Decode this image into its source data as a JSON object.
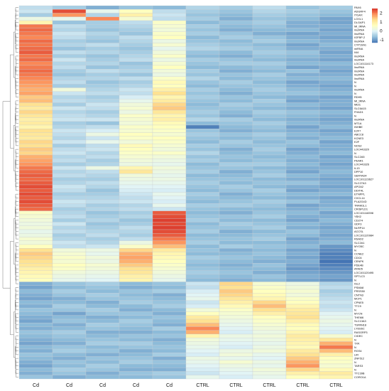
{
  "chart_data": {
    "type": "heatmap",
    "title": "",
    "xlabel": "",
    "ylabel": "",
    "columns": [
      "Cd",
      "Cd",
      "Cd",
      "Cd",
      "Cd",
      "CTRL",
      "CTRL",
      "CTRL",
      "CTRL",
      "CTRL"
    ],
    "rows": [
      "PAX6",
      "ADGRF4",
      "ITGAX",
      "LOXL1",
      "DLGAP1",
      "MI_tRNA",
      "lincRNA",
      "lincRNA",
      "IGFBP-2",
      "lincRNA",
      "CYP19A1",
      "miRNA",
      "Il44",
      "lincRNA",
      "lincRNA",
      "LOC101114173",
      "lincRNA",
      "lincRNA",
      "lincRNA",
      "lincRNA",
      "N",
      "N",
      "lincRNA",
      "N",
      "RDH5",
      "MI_tRNA",
      "MEI1",
      "SLC6A15",
      "FHAD1",
      "N",
      "lincRNA",
      "MT1A",
      "INHBE",
      "E2F7",
      "ABCC8",
      "KCNE3",
      "E2F",
      "NOS2",
      "LOC443320",
      "N",
      "SLC2A5",
      "PEAR1",
      "LOC443326",
      "IL13",
      "DPP10",
      "SERTAD4",
      "LOC101123627",
      "SLC27A3",
      "APOA2",
      "DDIT4L",
      "ETNPPL",
      "CXCL14",
      "PLA2G4D",
      "TRAM1L1",
      "CRISPLD1",
      "LOC101118398",
      "YBX2",
      "CD274",
      "GDF3",
      "NLRP14",
      "ACCSL",
      "LOC101120984",
      "RSAD2",
      "SLC2A1",
      "MYO5C",
      "N",
      "CCNE2",
      "CDC6",
      "CENPK",
      "PDE4B",
      "ATAD5",
      "LOC101120495",
      "SPTLC3",
      "N",
      "ISL2",
      "PSMA8",
      "PRSS50",
      "CNTN3",
      "MCP1",
      "CPNE5",
      "TTC9",
      "N",
      "MYCN",
      "THEM6",
      "SLC13A3",
      "TSPAN18",
      "LY6G6C",
      "RASGRP3",
      "CIDEC",
      "N",
      "TXK",
      "N",
      "RGS4",
      "LIR",
      "ZNF512",
      "N",
      "TARS3",
      "N",
      "TTC39B",
      "CORO1A"
    ],
    "values": [
      [
        -0.3,
        -0.5,
        -0.8,
        -0.6,
        -0.7,
        -0.4,
        -0.5,
        -0.3,
        -0.6,
        -0.5
      ],
      [
        -0.2,
        2.3,
        0.1,
        0.6,
        -0.3,
        -0.5,
        -0.6,
        -0.4,
        -0.5,
        -0.6
      ],
      [
        -0.5,
        1.8,
        -0.4,
        0.9,
        -0.2,
        -0.6,
        -0.7,
        -0.5,
        -0.6,
        -0.7
      ],
      [
        0.2,
        0.1,
        1.9,
        0.4,
        -0.3,
        -0.5,
        -0.8,
        -0.6,
        -0.7,
        -0.9
      ],
      [
        0.8,
        -0.6,
        -0.5,
        -0.3,
        0.5,
        -0.7,
        -0.6,
        -0.5,
        -0.8,
        -0.9
      ],
      [
        2.0,
        -0.3,
        -0.5,
        -0.4,
        0.4,
        -0.5,
        -0.7,
        -0.6,
        -0.8,
        -0.8
      ],
      [
        2.1,
        -0.4,
        -0.6,
        -0.5,
        0.3,
        -0.6,
        -0.8,
        -0.7,
        -0.7,
        -0.9
      ],
      [
        2.0,
        -0.2,
        -0.4,
        -0.6,
        0.5,
        -0.5,
        -0.6,
        -0.8,
        -0.9,
        -0.8
      ],
      [
        1.9,
        -0.3,
        -0.5,
        -0.3,
        0.6,
        -0.7,
        -0.5,
        -0.6,
        -0.8,
        -0.9
      ],
      [
        2.1,
        -0.5,
        -0.6,
        -0.4,
        0.2,
        -0.6,
        -0.7,
        -0.5,
        -0.7,
        -0.8
      ],
      [
        2.0,
        -0.4,
        -0.3,
        -0.5,
        0.4,
        -0.5,
        -0.6,
        -0.7,
        -0.9,
        -0.7
      ],
      [
        2.1,
        -0.6,
        -0.5,
        -0.6,
        0.1,
        -0.4,
        -0.5,
        -0.6,
        -0.8,
        -0.8
      ],
      [
        2.2,
        -0.3,
        -0.4,
        -0.5,
        0.3,
        -0.6,
        -0.7,
        -0.5,
        -0.6,
        -0.9
      ],
      [
        2.0,
        -0.5,
        -0.6,
        -0.4,
        0.5,
        -0.7,
        -0.8,
        -0.6,
        -0.7,
        -0.8
      ],
      [
        2.1,
        -0.2,
        -0.5,
        -0.3,
        0.2,
        -0.5,
        -0.6,
        -0.7,
        -0.8,
        -0.9
      ],
      [
        1.9,
        -0.4,
        -0.4,
        -0.6,
        0.4,
        -0.6,
        -0.5,
        -0.5,
        -0.7,
        -0.7
      ],
      [
        2.0,
        -0.3,
        -0.6,
        -0.5,
        0.6,
        -0.7,
        -0.7,
        -0.6,
        -0.9,
        -0.8
      ],
      [
        2.1,
        -0.5,
        -0.3,
        -0.4,
        0.3,
        -0.5,
        -0.8,
        -0.7,
        -0.6,
        -0.9
      ],
      [
        2.0,
        -0.6,
        -0.5,
        -0.6,
        0.2,
        -0.6,
        -0.6,
        -0.5,
        -0.8,
        -0.8
      ],
      [
        1.9,
        -0.4,
        -0.4,
        -0.3,
        0.5,
        -0.4,
        -0.7,
        -0.6,
        -0.7,
        -0.7
      ],
      [
        1.8,
        -0.3,
        -0.6,
        -0.5,
        0.7,
        -0.6,
        -0.5,
        -0.7,
        -0.9,
        -0.8
      ],
      [
        1.7,
        -0.5,
        -0.5,
        -0.4,
        0.6,
        -0.7,
        -0.6,
        -0.6,
        -0.8,
        -0.9
      ],
      [
        1.6,
        0.3,
        -0.4,
        -0.2,
        0.9,
        -0.5,
        -0.7,
        -0.5,
        -0.7,
        -0.8
      ],
      [
        1.7,
        -0.2,
        -0.3,
        -0.3,
        1.2,
        -0.6,
        -0.8,
        -0.6,
        -0.6,
        -0.7
      ],
      [
        1.4,
        -0.4,
        -0.5,
        -0.1,
        0.8,
        -0.5,
        -0.6,
        -0.7,
        -0.8,
        -0.9
      ],
      [
        1.5,
        -0.3,
        -0.4,
        0.1,
        1.0,
        -0.6,
        -0.7,
        -0.5,
        -0.9,
        -0.8
      ],
      [
        1.2,
        -0.5,
        -0.2,
        0.3,
        1.3,
        -0.7,
        -0.5,
        -0.6,
        -0.7,
        -0.8
      ],
      [
        1.0,
        -0.2,
        -0.3,
        0.4,
        1.4,
        -0.6,
        -0.6,
        -0.7,
        -0.8,
        -0.9
      ],
      [
        1.3,
        -0.4,
        -0.5,
        0.2,
        1.1,
        -0.5,
        -0.7,
        -0.5,
        -0.6,
        -0.7
      ],
      [
        1.1,
        -0.3,
        -0.4,
        0.5,
        0.8,
        -0.6,
        -0.8,
        -0.6,
        -0.7,
        -0.8
      ],
      [
        0.9,
        -0.2,
        -0.2,
        0.4,
        0.9,
        -0.4,
        -0.5,
        -0.7,
        -0.8,
        -0.9
      ],
      [
        1.0,
        -0.5,
        -0.6,
        0.3,
        0.7,
        -0.7,
        -0.6,
        -0.5,
        -0.7,
        -0.8
      ],
      [
        0.8,
        -0.4,
        -0.3,
        0.5,
        0.6,
        -1.2,
        -0.7,
        -0.6,
        -0.9,
        -0.7
      ],
      [
        1.2,
        -0.2,
        -0.1,
        0.4,
        0.5,
        -0.6,
        -0.8,
        -0.7,
        -0.8,
        -0.9
      ],
      [
        1.1,
        -0.3,
        0.2,
        0.6,
        0.4,
        -0.5,
        -0.6,
        -0.5,
        -0.7,
        -0.8
      ],
      [
        1.0,
        -0.4,
        -0.2,
        0.5,
        0.6,
        -0.6,
        -0.7,
        -0.6,
        -0.8,
        -0.7
      ],
      [
        1.3,
        -0.2,
        0.1,
        0.3,
        0.5,
        -0.7,
        -0.5,
        -0.7,
        -0.6,
        -0.9
      ],
      [
        1.2,
        -0.5,
        -0.3,
        0.7,
        0.4,
        -0.5,
        -0.6,
        -0.6,
        -0.7,
        -0.8
      ],
      [
        1.4,
        -0.3,
        -0.2,
        0.6,
        0.3,
        -0.6,
        -0.8,
        -0.5,
        -0.9,
        -0.8
      ],
      [
        1.3,
        -0.2,
        -0.4,
        0.5,
        0.5,
        -0.4,
        -0.7,
        -0.6,
        -0.8,
        -0.7
      ],
      [
        1.6,
        -0.4,
        -0.3,
        0.4,
        0.3,
        -0.6,
        -0.6,
        -0.7,
        -0.7,
        -0.9
      ],
      [
        1.7,
        -0.3,
        -0.5,
        0.3,
        0.2,
        -0.5,
        -0.7,
        -0.6,
        -0.8,
        -0.8
      ],
      [
        1.8,
        -0.5,
        -0.4,
        0.2,
        0.1,
        -0.7,
        -0.5,
        -0.5,
        -0.7,
        -0.9
      ],
      [
        2.0,
        -0.2,
        0.2,
        0.8,
        0.3,
        -0.6,
        -0.6,
        -0.7,
        -0.8,
        -0.8
      ],
      [
        2.1,
        -0.4,
        -0.3,
        1.1,
        0.2,
        -0.5,
        -0.8,
        -0.6,
        -0.9,
        -0.7
      ],
      [
        2.2,
        -0.3,
        -0.4,
        0.3,
        0.1,
        -0.7,
        -0.7,
        -0.5,
        -0.7,
        -0.8
      ],
      [
        2.1,
        -0.5,
        -0.5,
        0.2,
        0.2,
        -0.6,
        -0.6,
        -0.7,
        -0.8,
        -0.9
      ],
      [
        2.2,
        -0.4,
        -0.3,
        0.1,
        0.1,
        -0.5,
        -0.7,
        -0.6,
        -0.6,
        -0.8
      ],
      [
        2.3,
        -0.2,
        -0.4,
        0.0,
        0.0,
        -0.6,
        -0.5,
        -0.7,
        -0.8,
        -0.9
      ],
      [
        2.2,
        -0.3,
        -0.6,
        -0.1,
        -0.1,
        -0.7,
        -0.6,
        -0.5,
        -0.9,
        -0.8
      ],
      [
        2.3,
        -0.5,
        -0.5,
        -0.2,
        0.1,
        -0.5,
        -0.8,
        -0.6,
        -0.7,
        -0.7
      ],
      [
        2.2,
        -0.4,
        -0.4,
        -0.3,
        0.0,
        -0.6,
        -0.7,
        -0.7,
        -0.8,
        -0.9
      ],
      [
        2.3,
        -0.2,
        -0.3,
        -0.2,
        -0.1,
        -0.7,
        -0.6,
        -0.5,
        -0.6,
        -0.8
      ],
      [
        2.2,
        -0.3,
        -0.5,
        -0.4,
        0.1,
        -0.5,
        -0.5,
        -0.6,
        -0.9,
        -0.8
      ],
      [
        2.1,
        -0.5,
        -0.4,
        -0.3,
        -0.2,
        -0.6,
        -0.7,
        -0.7,
        -0.8,
        -0.7
      ],
      [
        0.5,
        -0.4,
        -0.6,
        -0.5,
        2.2,
        -0.7,
        -0.8,
        -0.6,
        -0.7,
        -0.9
      ],
      [
        0.4,
        -0.3,
        -0.5,
        -0.4,
        2.3,
        -0.6,
        -0.6,
        -0.5,
        -0.8,
        -0.8
      ],
      [
        0.3,
        -0.5,
        -0.4,
        -0.6,
        2.4,
        -0.5,
        -0.7,
        -0.7,
        -0.9,
        -0.7
      ],
      [
        0.2,
        -0.2,
        -0.6,
        -0.5,
        2.3,
        -0.7,
        -0.5,
        -0.6,
        -0.7,
        -0.8
      ],
      [
        0.3,
        -0.4,
        -0.5,
        -0.3,
        2.4,
        -0.6,
        -0.6,
        -0.5,
        -0.8,
        -0.9
      ],
      [
        0.1,
        -0.3,
        -0.4,
        -0.4,
        2.3,
        -0.5,
        -0.8,
        -0.7,
        -0.6,
        -0.8
      ],
      [
        0.2,
        -0.5,
        -0.3,
        -0.5,
        2.2,
        -0.7,
        -0.7,
        -0.6,
        -0.7,
        -0.9
      ],
      [
        0.4,
        -0.4,
        -0.5,
        -0.3,
        2.0,
        -0.6,
        -0.6,
        -0.5,
        -0.9,
        -0.8
      ],
      [
        0.3,
        -0.2,
        -0.4,
        0.2,
        1.8,
        -0.5,
        -0.7,
        -0.7,
        -0.8,
        -0.7
      ],
      [
        0.6,
        -0.3,
        -0.2,
        0.5,
        1.5,
        -0.7,
        -0.5,
        -0.6,
        -0.7,
        -1.0
      ],
      [
        1.2,
        0.3,
        0.2,
        1.3,
        1.0,
        -0.6,
        -0.8,
        -0.7,
        -0.9,
        -1.1
      ],
      [
        1.4,
        0.4,
        0.1,
        1.6,
        0.8,
        -0.7,
        -0.7,
        -0.6,
        -0.8,
        -1.2
      ],
      [
        1.3,
        0.5,
        0.3,
        1.7,
        0.7,
        -0.5,
        -0.6,
        -0.7,
        -0.9,
        -1.2
      ],
      [
        1.2,
        0.4,
        0.2,
        1.6,
        0.6,
        -0.6,
        -0.7,
        -0.8,
        -0.8,
        -1.3
      ],
      [
        1.1,
        0.6,
        0.4,
        1.4,
        0.5,
        -0.7,
        -0.8,
        -0.6,
        -0.9,
        -1.2
      ],
      [
        0.9,
        0.5,
        0.3,
        1.2,
        0.4,
        -0.6,
        -0.7,
        -0.7,
        -1.0,
        -1.1
      ],
      [
        0.8,
        0.3,
        0.2,
        1.1,
        0.3,
        -0.5,
        -0.6,
        -0.8,
        -0.9,
        -1.0
      ],
      [
        0.7,
        0.2,
        0.1,
        0.9,
        0.2,
        -0.6,
        -0.7,
        -0.6,
        -0.8,
        -0.9
      ],
      [
        0.6,
        0.1,
        0.0,
        0.8,
        0.1,
        -0.7,
        -0.8,
        -0.7,
        -0.9,
        -1.0
      ],
      [
        -0.8,
        -0.6,
        -0.5,
        -0.7,
        -0.6,
        -0.2,
        1.3,
        0.4,
        0.2,
        -0.4
      ],
      [
        -0.9,
        -0.7,
        -0.6,
        -0.8,
        -0.7,
        -0.3,
        1.2,
        0.5,
        0.3,
        -0.3
      ],
      [
        -0.7,
        -0.5,
        -0.7,
        -0.6,
        -0.5,
        -0.1,
        1.4,
        0.6,
        0.4,
        -0.5
      ],
      [
        -0.8,
        -0.6,
        -0.5,
        -0.7,
        -0.8,
        0.0,
        1.3,
        0.7,
        0.3,
        -0.4
      ],
      [
        -0.9,
        -0.8,
        -0.6,
        -0.6,
        -0.7,
        0.1,
        1.1,
        0.8,
        0.5,
        -0.3
      ],
      [
        -0.7,
        -0.7,
        -0.8,
        -0.5,
        -0.6,
        -0.2,
        0.9,
        1.3,
        0.6,
        -0.2
      ],
      [
        -0.8,
        -0.5,
        -0.7,
        -0.7,
        -0.5,
        -0.1,
        0.7,
        1.5,
        0.8,
        -0.3
      ],
      [
        -0.6,
        -0.6,
        -0.5,
        -0.8,
        -0.7,
        0.3,
        0.5,
        1.2,
        1.0,
        -0.2
      ],
      [
        -0.7,
        -0.9,
        -0.6,
        -0.6,
        -0.8,
        0.6,
        0.4,
        0.9,
        1.1,
        0.0
      ],
      [
        -0.8,
        -0.7,
        -0.8,
        -0.7,
        -0.6,
        1.0,
        0.3,
        0.6,
        1.2,
        0.1
      ],
      [
        -0.9,
        -0.6,
        -0.7,
        -0.5,
        -0.7,
        1.2,
        0.2,
        0.5,
        0.9,
        0.2
      ],
      [
        -0.7,
        -0.8,
        -0.5,
        -0.6,
        -0.8,
        1.5,
        0.1,
        0.4,
        0.7,
        0.1
      ],
      [
        -0.8,
        -0.7,
        -0.6,
        -0.7,
        -0.5,
        1.9,
        0.0,
        0.3,
        0.6,
        0.0
      ],
      [
        -0.6,
        -0.5,
        -0.8,
        -0.8,
        -0.7,
        1.6,
        -0.1,
        0.2,
        0.8,
        -0.1
      ],
      [
        -0.7,
        -0.6,
        -0.7,
        -0.6,
        -0.6,
        0.8,
        0.2,
        0.3,
        1.0,
        0.4
      ],
      [
        -0.8,
        -0.7,
        -0.6,
        -0.7,
        -0.8,
        0.3,
        0.1,
        0.2,
        0.9,
        1.1
      ],
      [
        -0.9,
        -0.8,
        -0.5,
        -0.5,
        -0.7,
        0.2,
        0.0,
        0.1,
        0.8,
        1.6
      ],
      [
        -0.7,
        -0.6,
        -0.7,
        -0.6,
        -0.6,
        0.1,
        -0.1,
        0.2,
        0.7,
        2.0
      ],
      [
        -0.8,
        -0.5,
        -0.6,
        -0.8,
        -0.7,
        0.0,
        0.2,
        0.3,
        1.0,
        1.5
      ],
      [
        -0.6,
        -0.7,
        -0.8,
        -0.7,
        -0.5,
        -0.1,
        0.3,
        0.1,
        1.2,
        0.9
      ],
      [
        -0.7,
        -0.8,
        -0.6,
        -0.6,
        -0.8,
        0.2,
        0.1,
        0.0,
        1.4,
        0.6
      ],
      [
        -0.8,
        -0.6,
        -0.7,
        -0.5,
        -0.6,
        0.1,
        0.4,
        0.2,
        1.6,
        0.5
      ],
      [
        -0.9,
        -0.7,
        -0.5,
        -0.7,
        -0.7,
        0.0,
        0.2,
        0.1,
        1.8,
        0.4
      ],
      [
        -0.7,
        -0.5,
        -0.6,
        -0.8,
        -0.8,
        -0.1,
        0.1,
        0.3,
        1.3,
        0.7
      ],
      [
        -0.8,
        -0.6,
        -0.8,
        -0.6,
        -0.5,
        -0.2,
        0.0,
        0.2,
        0.9,
        1.0
      ],
      [
        -0.6,
        -0.8,
        -0.7,
        -0.7,
        -0.6,
        0.1,
        -0.1,
        0.1,
        0.6,
        0.8
      ]
    ],
    "color_scale": {
      "min": -1.3,
      "max": 2.5,
      "ticks": [
        2,
        1,
        0,
        -1
      ],
      "colors": [
        "#4575b4",
        "#91bfdb",
        "#e0f3f8",
        "#ffffbf",
        "#fee090",
        "#fc8d59",
        "#d73027"
      ]
    },
    "legend_position": "top-right",
    "grid": true,
    "dendrogram": "left"
  }
}
